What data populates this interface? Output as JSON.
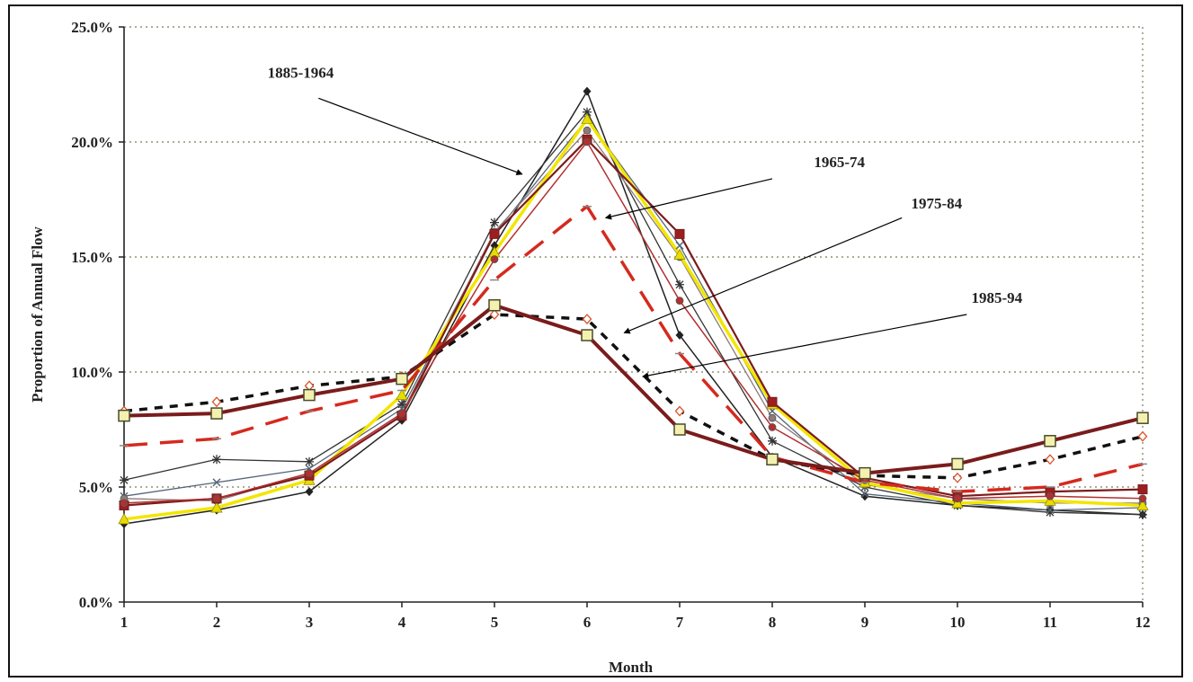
{
  "chart_data": {
    "type": "line",
    "title": "",
    "xlabel": "Month",
    "ylabel": "Proportion of Annual Flow",
    "x": [
      1,
      2,
      3,
      4,
      5,
      6,
      7,
      8,
      9,
      10,
      11,
      12
    ],
    "xticks": [
      "1",
      "2",
      "3",
      "4",
      "5",
      "6",
      "7",
      "8",
      "9",
      "10",
      "11",
      "12"
    ],
    "xlim": [
      1,
      12
    ],
    "ylim": [
      0,
      25
    ],
    "yticks": [
      0,
      5,
      10,
      15,
      20,
      25
    ],
    "ytick_labels": [
      "0.0%",
      "5.0%",
      "10.0%",
      "15.0%",
      "20.0%",
      "25.0%"
    ],
    "grid": true,
    "legend": "none",
    "series": [
      {
        "values": [
          3.4,
          4.0,
          4.8,
          7.9,
          15.5,
          22.2,
          11.6,
          6.3,
          4.6,
          4.2,
          4.0,
          3.8
        ],
        "color": "#222222",
        "style": "solid",
        "width": 1.5,
        "marker": "diamond"
      },
      {
        "values": [
          5.3,
          6.2,
          6.1,
          8.6,
          16.5,
          21.3,
          13.8,
          7.0,
          5.0,
          4.2,
          3.9,
          3.8
        ],
        "color": "#333333",
        "style": "solid",
        "width": 1.3,
        "marker": "star"
      },
      {
        "values": [
          4.6,
          5.2,
          5.8,
          8.4,
          16.0,
          21.0,
          15.5,
          8.3,
          4.7,
          4.3,
          4.0,
          4.1
        ],
        "color": "#556677",
        "style": "solid",
        "width": 1.3,
        "marker": "x"
      },
      {
        "values": [
          4.5,
          4.4,
          5.6,
          8.2,
          16.1,
          20.5,
          15.0,
          8.0,
          5.1,
          4.5,
          4.3,
          4.3
        ],
        "color": "#8e7a78",
        "style": "solid",
        "width": 1.3,
        "marker": "circle"
      },
      {
        "values": [
          3.6,
          4.1,
          5.3,
          9.0,
          15.2,
          21.0,
          15.1,
          8.6,
          5.2,
          4.3,
          4.4,
          4.2
        ],
        "color": "#f2e600",
        "style": "solid",
        "width": 3.5,
        "marker": "triangle"
      },
      {
        "values": [
          4.2,
          4.5,
          5.5,
          8.1,
          16.0,
          20.1,
          16.0,
          8.7,
          5.4,
          4.6,
          4.8,
          4.9
        ],
        "color": "#7a1c1c",
        "style": "solid",
        "width": 2.2,
        "marker": "square"
      },
      {
        "values": [
          4.3,
          4.5,
          5.6,
          8.2,
          14.9,
          20.0,
          13.1,
          7.6,
          5.3,
          4.5,
          4.6,
          4.5
        ],
        "color": "#b23030",
        "style": "solid",
        "width": 1.5,
        "marker": "circle"
      },
      {
        "values": [
          6.8,
          7.1,
          8.3,
          9.2,
          14.0,
          17.2,
          10.8,
          6.3,
          5.2,
          4.8,
          5.0,
          6.0
        ],
        "color": "#d42a1e",
        "style": "dashed",
        "width": 3.5,
        "marker": "dash"
      },
      {
        "values": [
          8.3,
          8.7,
          9.4,
          9.8,
          12.5,
          12.3,
          8.3,
          6.2,
          5.5,
          5.4,
          6.2,
          7.2
        ],
        "color": "#111111",
        "style": "dotted",
        "width": 3.5,
        "marker": "diamond-open"
      },
      {
        "values": [
          8.1,
          8.2,
          9.0,
          9.7,
          12.9,
          11.6,
          7.5,
          6.2,
          5.6,
          6.0,
          7.0,
          8.0
        ],
        "color": "#7a1c1c",
        "style": "solid",
        "width": 4,
        "marker": "square-open"
      }
    ],
    "annotations": [
      {
        "text": "1885-1964",
        "x": 2.55,
        "y": 22.8,
        "arrow_from": [
          3.1,
          21.9
        ],
        "arrow_to": [
          5.3,
          18.6
        ]
      },
      {
        "text": "1965-74",
        "x": 8.45,
        "y": 18.9,
        "arrow_from": [
          8.0,
          18.4
        ],
        "arrow_to": [
          6.2,
          16.7
        ]
      },
      {
        "text": "1975-84",
        "x": 9.5,
        "y": 17.1,
        "arrow_from": [
          9.4,
          16.7
        ],
        "arrow_to": [
          6.4,
          11.7
        ]
      },
      {
        "text": "1985-94",
        "x": 10.15,
        "y": 13.0,
        "arrow_from": [
          10.1,
          12.5
        ],
        "arrow_to": [
          6.6,
          9.8
        ]
      }
    ]
  }
}
